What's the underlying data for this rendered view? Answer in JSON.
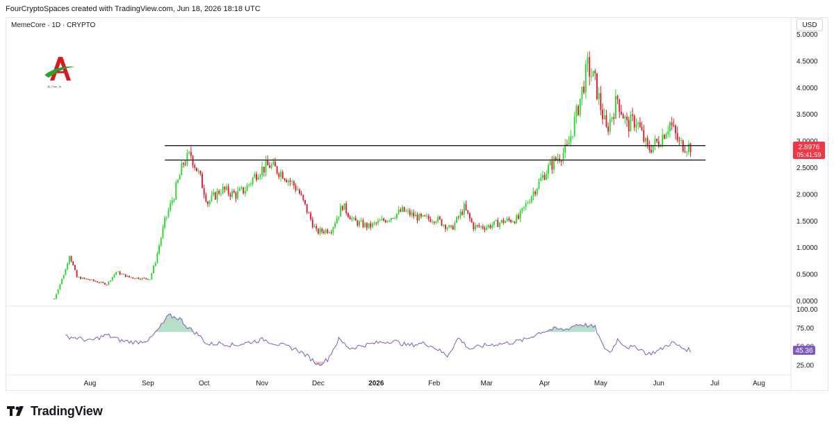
{
  "header": {
    "caption": "FourCryptoSpaces created with TradingView.com, Jun 18, 2026 18:18 UTC",
    "symbol": "MemeCore · 1D · CRYPTO",
    "currency": "USD"
  },
  "logo": {
    "caption": "@_Four_fs"
  },
  "footer": {
    "brand": "TradingView"
  },
  "colors": {
    "up": "#26d926",
    "down": "#e0182e",
    "rsi": "#7e57c2",
    "price_badge": "#f23645",
    "rsi_badge": "#7e57c2"
  },
  "chart_data": [
    {
      "type": "candlestick",
      "ylim": [
        0,
        5
      ],
      "yticks": [
        "0.0000",
        "0.5000",
        "1.0000",
        "1.5000",
        "2.0000",
        "2.5000",
        "3.0000",
        "3.5000",
        "4.0000",
        "4.5000",
        "5.0000"
      ],
      "xticks": [
        "Aug",
        "Sep",
        "Oct",
        "Nov",
        "Dec",
        "2026",
        "Feb",
        "Mar",
        "Apr",
        "May",
        "Jun",
        "Jul",
        "Aug"
      ],
      "horizontal_lines": [
        2.92,
        2.65
      ],
      "last_price": "2.8976",
      "countdown": "05:41:59",
      "trend_close": [
        [
          "2025-07-13",
          0.05
        ],
        [
          "2025-07-19",
          0.6
        ],
        [
          "2025-07-21",
          0.88
        ],
        [
          "2025-07-25",
          0.45
        ],
        [
          "2025-08-01",
          0.4
        ],
        [
          "2025-08-10",
          0.32
        ],
        [
          "2025-08-15",
          0.55
        ],
        [
          "2025-08-22",
          0.45
        ],
        [
          "2025-09-02",
          0.42
        ],
        [
          "2025-09-05",
          0.75
        ],
        [
          "2025-09-10",
          1.5
        ],
        [
          "2025-09-15",
          2.0
        ],
        [
          "2025-09-20",
          2.6
        ],
        [
          "2025-09-24",
          2.75
        ],
        [
          "2025-09-29",
          2.3
        ],
        [
          "2025-10-03",
          1.85
        ],
        [
          "2025-10-10",
          2.1
        ],
        [
          "2025-10-18",
          2.0
        ],
        [
          "2025-10-23",
          2.1
        ],
        [
          "2025-10-30",
          2.45
        ],
        [
          "2025-11-05",
          2.55
        ],
        [
          "2025-11-12",
          2.4
        ],
        [
          "2025-11-20",
          2.1
        ],
        [
          "2025-11-25",
          1.7
        ],
        [
          "2025-11-30",
          1.3
        ],
        [
          "2025-12-08",
          1.35
        ],
        [
          "2025-12-14",
          1.8
        ],
        [
          "2025-12-20",
          1.5
        ],
        [
          "2025-12-28",
          1.4
        ],
        [
          "2026-01-07",
          1.55
        ],
        [
          "2026-01-15",
          1.7
        ],
        [
          "2026-01-25",
          1.55
        ],
        [
          "2026-02-02",
          1.55
        ],
        [
          "2026-02-10",
          1.35
        ],
        [
          "2026-02-17",
          1.75
        ],
        [
          "2026-02-22",
          1.4
        ],
        [
          "2026-03-01",
          1.4
        ],
        [
          "2026-03-10",
          1.5
        ],
        [
          "2026-03-18",
          1.55
        ],
        [
          "2026-03-25",
          2.0
        ],
        [
          "2026-04-02",
          2.45
        ],
        [
          "2026-04-08",
          2.7
        ],
        [
          "2026-04-13",
          2.85
        ],
        [
          "2026-04-18",
          3.5
        ],
        [
          "2026-04-24",
          4.4
        ],
        [
          "2026-04-28",
          4.1
        ],
        [
          "2026-05-04",
          3.2
        ],
        [
          "2026-05-10",
          3.8
        ],
        [
          "2026-05-15",
          3.3
        ],
        [
          "2026-05-20",
          3.4
        ],
        [
          "2026-05-26",
          2.85
        ],
        [
          "2026-06-01",
          3.0
        ],
        [
          "2026-06-07",
          3.35
        ],
        [
          "2026-06-12",
          2.95
        ],
        [
          "2026-06-18",
          2.9
        ]
      ]
    },
    {
      "type": "line",
      "name": "RSI",
      "ylim": [
        15,
        100
      ],
      "yticks": [
        "25.00",
        "50.00",
        "75.00",
        "100.00"
      ],
      "last_value": "45.36",
      "trend": [
        [
          "2025-07-19",
          64
        ],
        [
          "2025-07-25",
          62
        ],
        [
          "2025-08-01",
          58
        ],
        [
          "2025-08-10",
          66
        ],
        [
          "2025-08-18",
          58
        ],
        [
          "2025-08-26",
          56
        ],
        [
          "2025-09-02",
          60
        ],
        [
          "2025-09-08",
          78
        ],
        [
          "2025-09-12",
          92
        ],
        [
          "2025-09-18",
          88
        ],
        [
          "2025-09-22",
          77
        ],
        [
          "2025-09-28",
          66
        ],
        [
          "2025-10-03",
          53
        ],
        [
          "2025-10-10",
          55
        ],
        [
          "2025-10-17",
          52
        ],
        [
          "2025-10-25",
          56
        ],
        [
          "2025-11-02",
          60
        ],
        [
          "2025-11-06",
          56
        ],
        [
          "2025-11-12",
          52
        ],
        [
          "2025-11-20",
          46
        ],
        [
          "2025-11-26",
          36
        ],
        [
          "2025-12-01",
          26
        ],
        [
          "2025-12-06",
          33
        ],
        [
          "2025-12-12",
          60
        ],
        [
          "2025-12-18",
          48
        ],
        [
          "2025-12-25",
          52
        ],
        [
          "2026-01-03",
          56
        ],
        [
          "2026-01-10",
          58
        ],
        [
          "2026-01-18",
          52
        ],
        [
          "2026-01-27",
          55
        ],
        [
          "2026-02-02",
          48
        ],
        [
          "2026-02-08",
          38
        ],
        [
          "2026-02-14",
          62
        ],
        [
          "2026-02-20",
          47
        ],
        [
          "2026-02-28",
          52
        ],
        [
          "2026-03-08",
          54
        ],
        [
          "2026-03-15",
          56
        ],
        [
          "2026-03-22",
          60
        ],
        [
          "2026-03-30",
          70
        ],
        [
          "2026-04-06",
          74
        ],
        [
          "2026-04-12",
          73
        ],
        [
          "2026-04-18",
          80
        ],
        [
          "2026-04-22",
          80
        ],
        [
          "2026-04-28",
          76
        ],
        [
          "2026-05-02",
          52
        ],
        [
          "2026-05-06",
          42
        ],
        [
          "2026-05-10",
          60
        ],
        [
          "2026-05-15",
          50
        ],
        [
          "2026-05-22",
          48
        ],
        [
          "2026-05-26",
          40
        ],
        [
          "2026-06-01",
          45
        ],
        [
          "2026-06-08",
          56
        ],
        [
          "2026-06-14",
          48
        ],
        [
          "2026-06-18",
          45.36
        ]
      ]
    }
  ]
}
